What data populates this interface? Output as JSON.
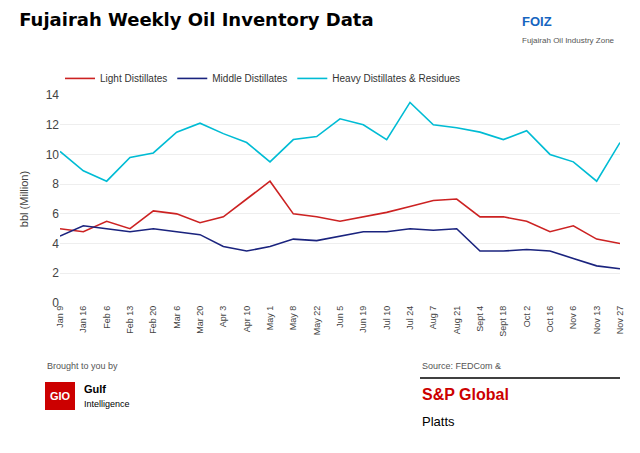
{
  "chart_data": {
    "type": "line",
    "title": "Fujairah Weekly Oil Inventory Data",
    "ylabel": "bbl (Million)",
    "categories": [
      "Jan 9",
      "Jan 16",
      "Feb 6",
      "Feb 13",
      "Feb 20",
      "Mar 6",
      "Mar 20",
      "Apr 3",
      "Apr 10",
      "May 1",
      "May 8",
      "May 22",
      "Jun 5",
      "Jun 19",
      "Jul 10",
      "Jul 24",
      "Aug 7",
      "Aug 21",
      "Sept 4",
      "Sept 18",
      "Oct 2",
      "Oct 16",
      "Nov 6",
      "Nov 13",
      "Nov 27"
    ],
    "series": [
      {
        "name": "Light Distillates",
        "color": "#cc2222",
        "values": [
          5.0,
          4.8,
          5.5,
          5.0,
          6.2,
          6.0,
          5.4,
          5.8,
          7.0,
          8.2,
          6.0,
          5.8,
          5.5,
          5.8,
          6.1,
          6.5,
          6.9,
          7.0,
          5.8,
          5.8,
          5.5,
          4.8,
          5.2,
          4.3,
          4.0
        ]
      },
      {
        "name": "Middle Distillates",
        "color": "#1a237e",
        "values": [
          4.5,
          5.2,
          5.0,
          4.8,
          5.0,
          4.8,
          4.6,
          3.8,
          3.5,
          3.8,
          4.3,
          4.2,
          4.5,
          4.8,
          4.8,
          5.0,
          4.9,
          5.0,
          3.5,
          3.5,
          3.6,
          3.5,
          3.0,
          2.5,
          2.3
        ]
      },
      {
        "name": "Heavy Distillates & Residues",
        "color": "#00bcd4",
        "values": [
          10.2,
          8.9,
          8.2,
          9.8,
          10.1,
          11.5,
          12.1,
          11.4,
          10.8,
          9.5,
          11.0,
          11.2,
          12.4,
          12.0,
          11.0,
          13.5,
          12.0,
          11.8,
          11.5,
          11.0,
          11.6,
          10.0,
          9.5,
          8.2,
          10.8
        ]
      }
    ],
    "ylim": [
      0,
      14
    ],
    "yticks": [
      0,
      2,
      4,
      6,
      8,
      10,
      12,
      14
    ],
    "grid": true,
    "legend": "top",
    "annotations": [
      "Brought to you by",
      "GIO",
      "Gulf",
      "Intelligence",
      "Source: FEDCom &",
      "S&P Global",
      "Platts",
      "FOIZ",
      "Fujairah Oil Industry Zone"
    ]
  }
}
